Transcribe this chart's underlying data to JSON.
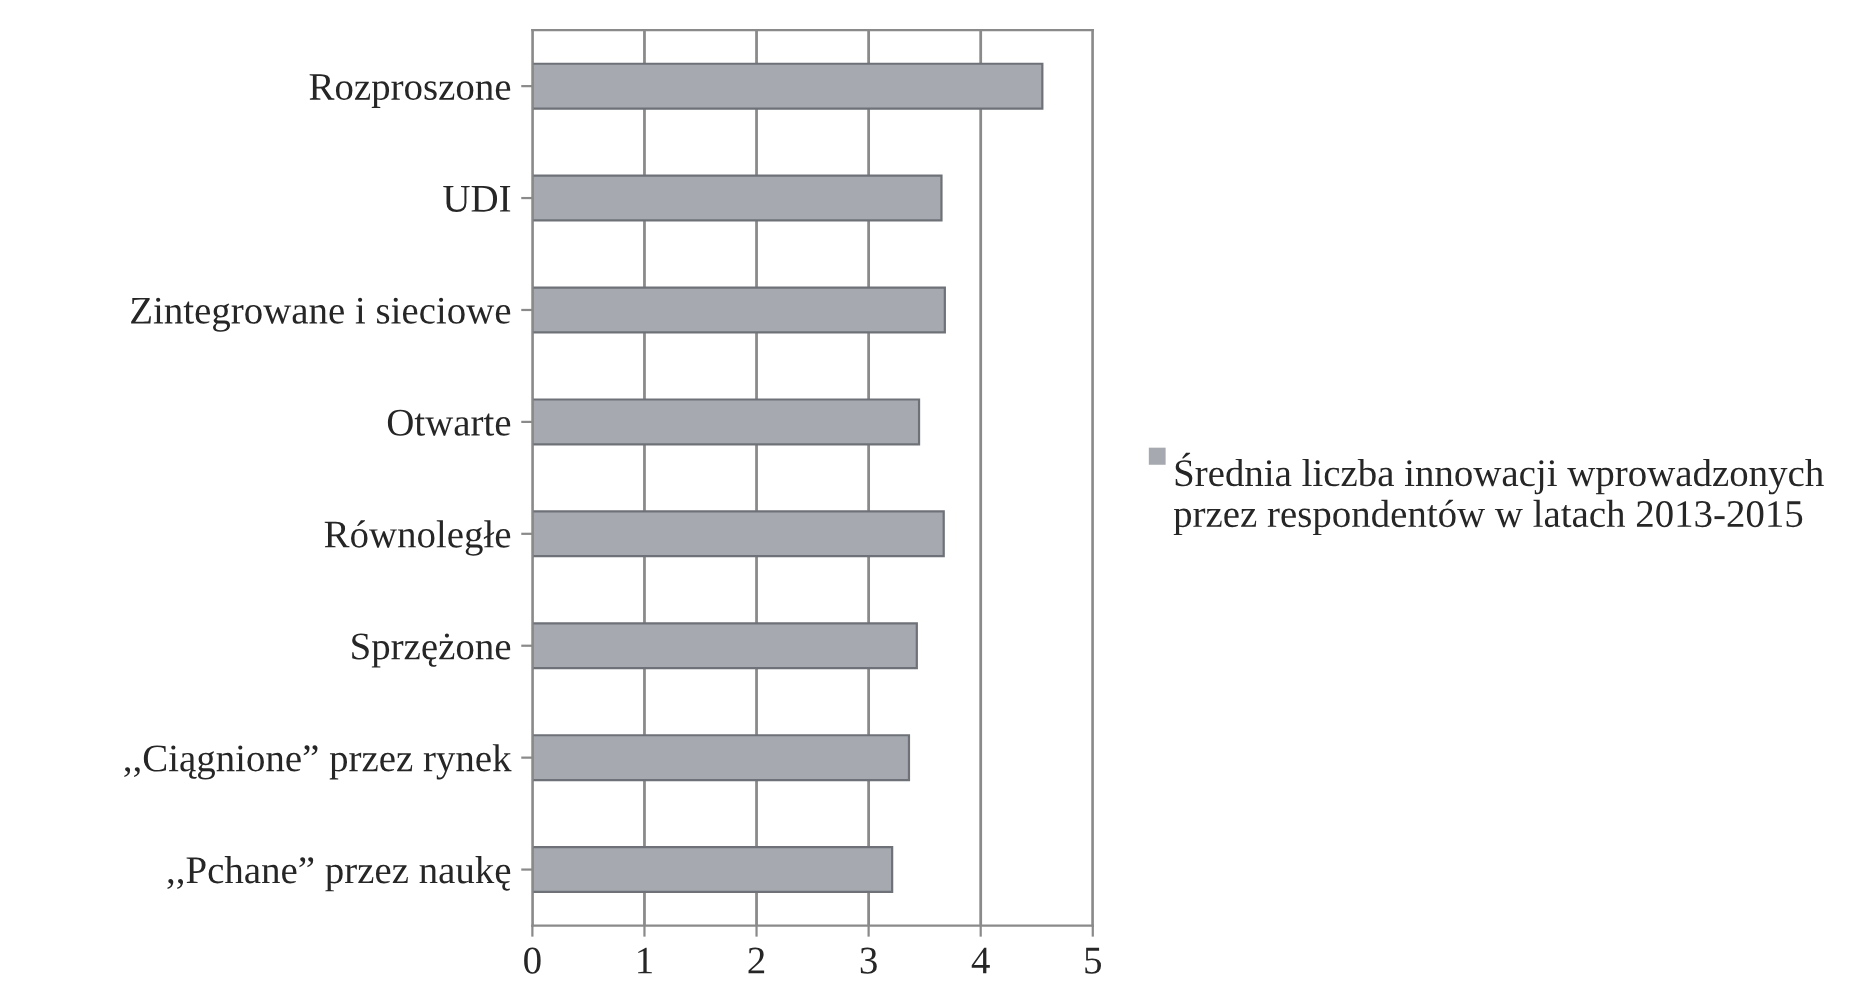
{
  "chart_data": {
    "type": "bar",
    "orientation": "horizontal",
    "categories": [
      "Rozproszone",
      "UDI",
      "Zintegrowane i sieciowe",
      "Otwarte",
      "Równoległe",
      "Sprzężone",
      ",,Ciągnione” przez rynek",
      ",,Pchane” przez naukę"
    ],
    "series": [
      {
        "name": "Średnia liczba innowacji wprowadzonych przez respondentów w latach 2013-2015",
        "color": "#a6aab0",
        "values": [
          4.55,
          3.65,
          3.68,
          3.45,
          3.67,
          3.43,
          3.36,
          3.21
        ]
      }
    ],
    "xlim": [
      0,
      5
    ],
    "xticks": [
      0,
      1,
      2,
      3,
      4,
      5
    ],
    "grid": "x",
    "legend": "right"
  }
}
